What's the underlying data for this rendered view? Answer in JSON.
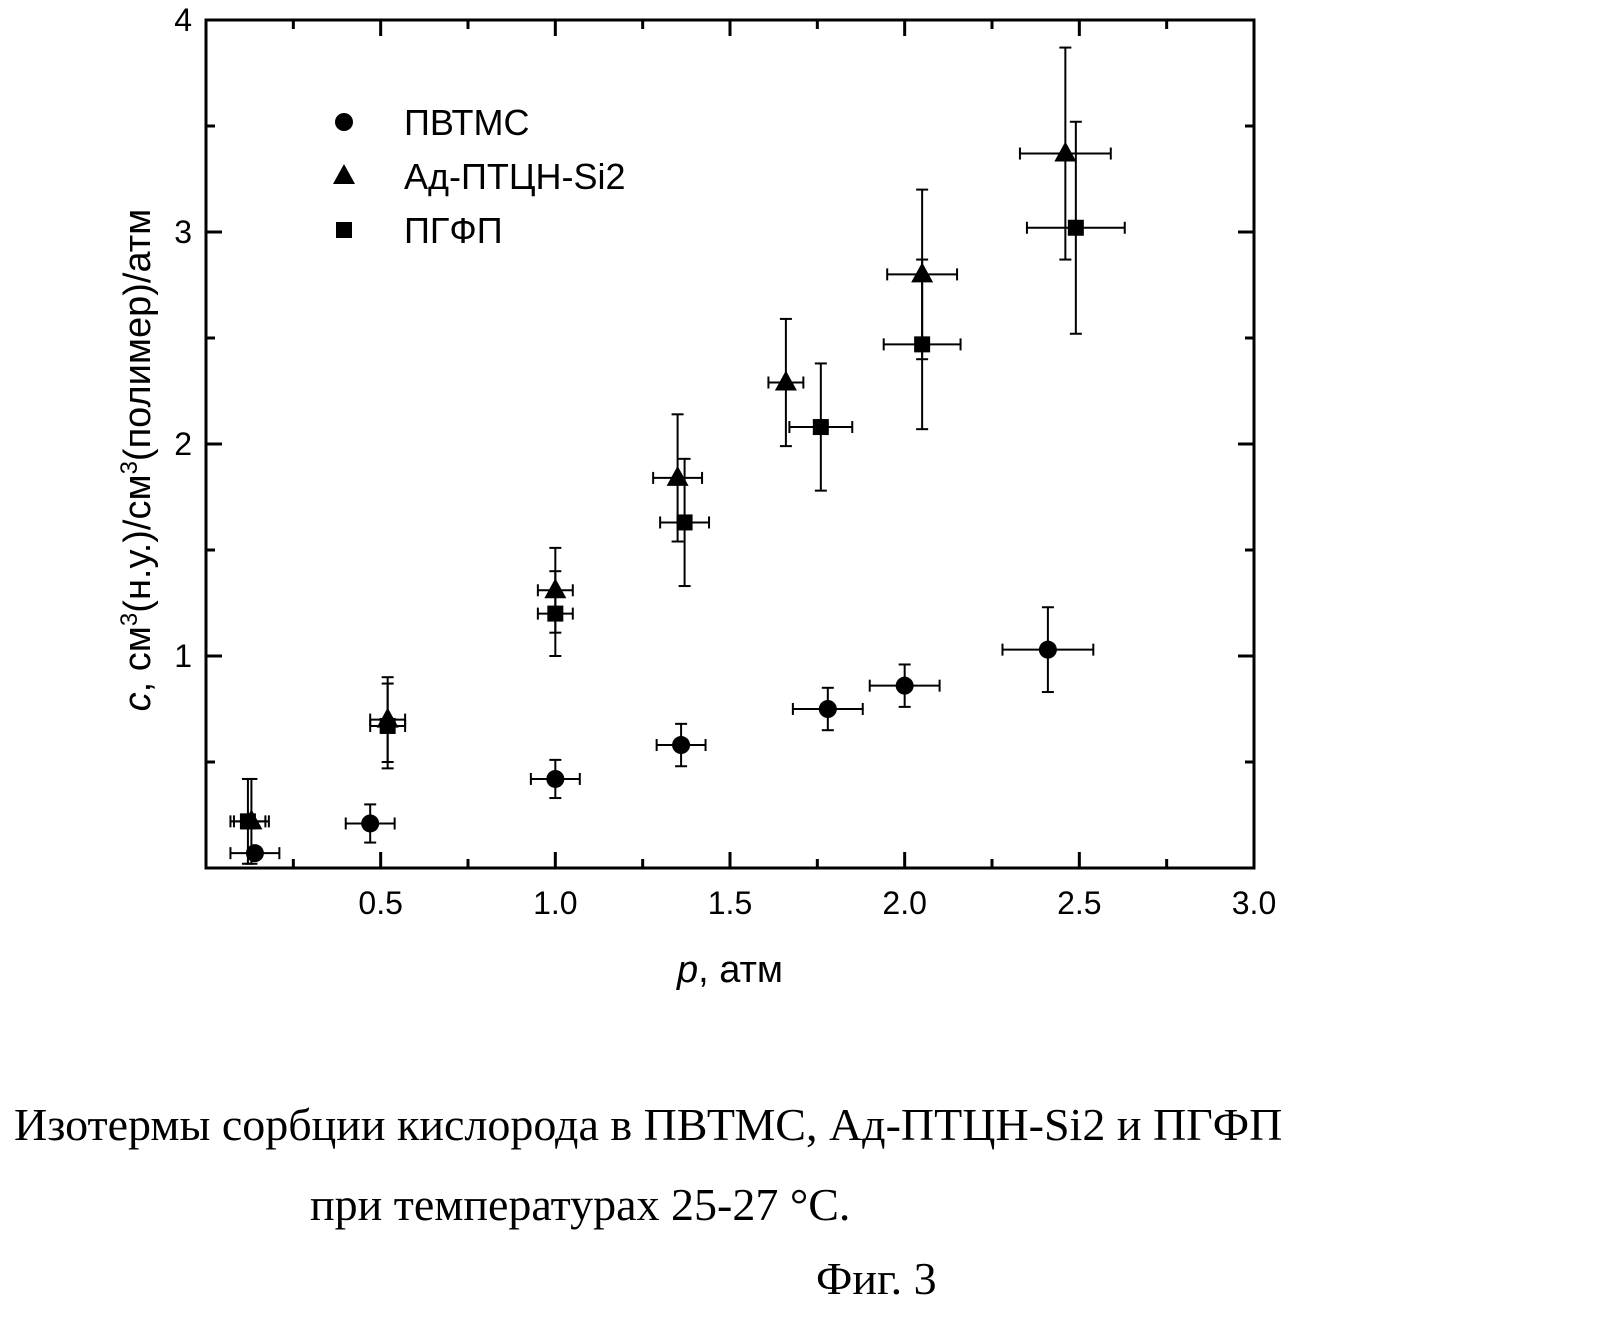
{
  "chart_data": {
    "type": "scatter",
    "xlabel_var": "p",
    "xlabel_unit": ", атм",
    "ylabel_var": "c",
    "ylabel_parts": [
      ", см",
      "3",
      "(н.у.)/см",
      "3",
      "(полимер)/атм"
    ],
    "xlim": [
      0.0,
      3.0
    ],
    "ylim": [
      0.0,
      4.0
    ],
    "x_ticks": [
      "0.5",
      "1.0",
      "1.5",
      "2.0",
      "2.5",
      "3.0"
    ],
    "y_ticks": [
      "1",
      "2",
      "3",
      "4"
    ],
    "legend_position": "top-left",
    "series": [
      {
        "name": "ПВТМС",
        "marker": "circle",
        "points": [
          {
            "x": 0.14,
            "y": 0.07,
            "xerr": 0.07,
            "yerr": 0.0
          },
          {
            "x": 0.47,
            "y": 0.21,
            "xerr": 0.07,
            "yerr": 0.09
          },
          {
            "x": 1.0,
            "y": 0.42,
            "xerr": 0.07,
            "yerr": 0.09
          },
          {
            "x": 1.36,
            "y": 0.58,
            "xerr": 0.07,
            "yerr": 0.1
          },
          {
            "x": 1.78,
            "y": 0.75,
            "xerr": 0.1,
            "yerr": 0.1
          },
          {
            "x": 2.0,
            "y": 0.86,
            "xerr": 0.1,
            "yerr": 0.1
          },
          {
            "x": 2.41,
            "y": 1.03,
            "xerr": 0.13,
            "yerr": 0.2
          }
        ]
      },
      {
        "name": "Ад-ПТЦН-Si2",
        "marker": "triangle",
        "points": [
          {
            "x": 0.13,
            "y": 0.22,
            "xerr": 0.05,
            "yerr": 0.2
          },
          {
            "x": 0.52,
            "y": 0.7,
            "xerr": 0.05,
            "yerr": 0.2
          },
          {
            "x": 1.0,
            "y": 1.31,
            "xerr": 0.05,
            "yerr": 0.2
          },
          {
            "x": 1.35,
            "y": 1.84,
            "xerr": 0.07,
            "yerr": 0.3
          },
          {
            "x": 1.66,
            "y": 2.29,
            "xerr": 0.05,
            "yerr": 0.3
          },
          {
            "x": 2.05,
            "y": 2.8,
            "xerr": 0.1,
            "yerr": 0.4
          },
          {
            "x": 2.46,
            "y": 3.37,
            "xerr": 0.13,
            "yerr": 0.5
          }
        ]
      },
      {
        "name": "ПГФП",
        "marker": "square",
        "points": [
          {
            "x": 0.12,
            "y": 0.22,
            "xerr": 0.05,
            "yerr": 0.2
          },
          {
            "x": 0.52,
            "y": 0.67,
            "xerr": 0.05,
            "yerr": 0.2
          },
          {
            "x": 1.0,
            "y": 1.2,
            "xerr": 0.05,
            "yerr": 0.2
          },
          {
            "x": 1.37,
            "y": 1.63,
            "xerr": 0.07,
            "yerr": 0.3
          },
          {
            "x": 1.76,
            "y": 2.08,
            "xerr": 0.09,
            "yerr": 0.3
          },
          {
            "x": 2.05,
            "y": 2.47,
            "xerr": 0.11,
            "yerr": 0.4
          },
          {
            "x": 2.49,
            "y": 3.02,
            "xerr": 0.14,
            "yerr": 0.5
          }
        ]
      }
    ]
  },
  "caption_line1": "Изотермы сорбции кислорода в ПВТМС, Ад-ПТЦН-Si2 и ПГФП",
  "caption_line2": "при температурах 25-27 °С.",
  "figure_label": "Фиг. 3"
}
